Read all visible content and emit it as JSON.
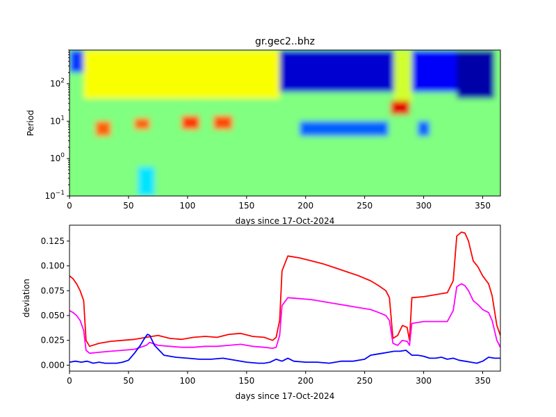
{
  "chart_data": [
    {
      "type": "heatmap",
      "title": "gr.gec2..bhz",
      "xlabel": "days since 17-Oct-2024",
      "ylabel": "Period",
      "xlim": [
        0,
        365
      ],
      "ylim": [
        0.1,
        800
      ],
      "yscale": "log",
      "colormap": "jet",
      "x_ticks": [
        0,
        50,
        100,
        150,
        200,
        250,
        300,
        350
      ],
      "x_tick_labels": [
        "0",
        "50",
        "100",
        "150",
        "200",
        "250",
        "300",
        "350"
      ],
      "y_ticks": [
        0.1,
        1,
        10,
        100
      ],
      "y_tick_labels": [
        {
          "base": "10",
          "exp": "−1"
        },
        {
          "base": "10",
          "exp": "0"
        },
        {
          "base": "10",
          "exp": "1"
        },
        {
          "base": "10",
          "exp": "2"
        }
      ],
      "description_value_scale": "0 = blue (low deviation), 1 = red (high deviation)",
      "features": [
        {
          "x_range": [
            0,
            12
          ],
          "period_range": [
            200,
            800
          ],
          "level": 0.18
        },
        {
          "x_range": [
            12,
            178
          ],
          "period_range": [
            40,
            800
          ],
          "level": 0.62
        },
        {
          "x_range": [
            178,
            275
          ],
          "period_range": [
            60,
            800
          ],
          "level": 0.08
        },
        {
          "x_range": [
            275,
            290
          ],
          "period_range": [
            30,
            800
          ],
          "level": 0.58
        },
        {
          "x_range": [
            290,
            328
          ],
          "period_range": [
            60,
            800
          ],
          "level": 0.12
        },
        {
          "x_range": [
            328,
            360
          ],
          "period_range": [
            40,
            800
          ],
          "level": 0.04
        },
        {
          "x_range": [
            22,
            35
          ],
          "period_range": [
            4,
            10
          ],
          "level": 0.78
        },
        {
          "x_range": [
            55,
            68
          ],
          "period_range": [
            6,
            12
          ],
          "level": 0.78
        },
        {
          "x_range": [
            95,
            110
          ],
          "period_range": [
            6,
            14
          ],
          "level": 0.82
        },
        {
          "x_range": [
            122,
            138
          ],
          "period_range": [
            6,
            14
          ],
          "level": 0.8
        },
        {
          "x_range": [
            272,
            288
          ],
          "period_range": [
            15,
            35
          ],
          "level": 0.9
        },
        {
          "x_range": [
            195,
            270
          ],
          "period_range": [
            4,
            10
          ],
          "level": 0.22
        },
        {
          "x_range": [
            295,
            305
          ],
          "period_range": [
            4,
            10
          ],
          "level": 0.22
        },
        {
          "x_range": [
            58,
            72
          ],
          "period_range": [
            0.1,
            0.6
          ],
          "level": 0.35
        }
      ]
    },
    {
      "type": "line",
      "xlabel": "days since 17-Oct-2024",
      "ylabel": "deviation",
      "xlim": [
        0,
        365
      ],
      "ylim": [
        -0.006,
        0.141
      ],
      "x_ticks": [
        0,
        50,
        100,
        150,
        200,
        250,
        300,
        350
      ],
      "x_tick_labels": [
        "0",
        "50",
        "100",
        "150",
        "200",
        "250",
        "300",
        "350"
      ],
      "y_ticks": [
        0.0,
        0.025,
        0.05,
        0.075,
        0.1,
        0.125
      ],
      "y_tick_labels": [
        "0.000",
        "0.025",
        "0.050",
        "0.075",
        "0.100",
        "0.125"
      ],
      "grid": false,
      "series": [
        {
          "color": "#ff0000",
          "x": [
            0,
            3,
            6,
            9,
            12,
            14,
            17,
            25,
            35,
            45,
            55,
            65,
            75,
            85,
            95,
            105,
            115,
            125,
            135,
            145,
            155,
            165,
            172,
            175,
            178,
            180,
            185,
            195,
            205,
            215,
            225,
            235,
            245,
            255,
            262,
            268,
            271,
            274,
            278,
            282,
            286,
            288,
            290,
            300,
            310,
            320,
            325,
            328,
            332,
            335,
            338,
            342,
            346,
            350,
            355,
            358,
            362,
            365
          ],
          "y": [
            0.09,
            0.087,
            0.082,
            0.075,
            0.065,
            0.025,
            0.019,
            0.022,
            0.024,
            0.025,
            0.026,
            0.028,
            0.03,
            0.027,
            0.026,
            0.028,
            0.029,
            0.028,
            0.031,
            0.032,
            0.029,
            0.028,
            0.025,
            0.028,
            0.045,
            0.095,
            0.11,
            0.108,
            0.105,
            0.102,
            0.098,
            0.094,
            0.09,
            0.085,
            0.08,
            0.075,
            0.068,
            0.027,
            0.03,
            0.04,
            0.038,
            0.025,
            0.068,
            0.069,
            0.071,
            0.073,
            0.085,
            0.13,
            0.134,
            0.133,
            0.125,
            0.105,
            0.099,
            0.09,
            0.082,
            0.07,
            0.04,
            0.03
          ]
        },
        {
          "color": "#ff00ff",
          "x": [
            0,
            3,
            6,
            9,
            12,
            14,
            17,
            25,
            35,
            45,
            55,
            65,
            68,
            75,
            85,
            95,
            105,
            115,
            125,
            135,
            145,
            155,
            165,
            172,
            175,
            178,
            180,
            185,
            195,
            205,
            215,
            225,
            235,
            245,
            255,
            262,
            268,
            271,
            274,
            278,
            282,
            286,
            288,
            290,
            300,
            310,
            320,
            325,
            328,
            332,
            335,
            338,
            342,
            346,
            350,
            355,
            358,
            362,
            365
          ],
          "y": [
            0.055,
            0.053,
            0.05,
            0.045,
            0.035,
            0.015,
            0.012,
            0.013,
            0.014,
            0.015,
            0.016,
            0.02,
            0.023,
            0.02,
            0.019,
            0.018,
            0.018,
            0.019,
            0.019,
            0.02,
            0.021,
            0.019,
            0.018,
            0.017,
            0.018,
            0.03,
            0.06,
            0.068,
            0.067,
            0.066,
            0.064,
            0.062,
            0.06,
            0.058,
            0.056,
            0.053,
            0.05,
            0.045,
            0.022,
            0.02,
            0.025,
            0.024,
            0.02,
            0.042,
            0.044,
            0.044,
            0.044,
            0.055,
            0.079,
            0.082,
            0.08,
            0.075,
            0.065,
            0.061,
            0.056,
            0.053,
            0.045,
            0.025,
            0.018
          ]
        },
        {
          "color": "#0000ff",
          "x": [
            0,
            5,
            10,
            15,
            20,
            25,
            30,
            35,
            40,
            45,
            50,
            55,
            60,
            63,
            66,
            68,
            72,
            76,
            80,
            90,
            100,
            110,
            120,
            130,
            140,
            150,
            160,
            165,
            170,
            175,
            180,
            185,
            190,
            200,
            210,
            220,
            230,
            240,
            250,
            255,
            260,
            265,
            270,
            275,
            280,
            285,
            290,
            295,
            300,
            305,
            310,
            315,
            320,
            325,
            330,
            335,
            340,
            345,
            350,
            355,
            360,
            365
          ],
          "y": [
            0.003,
            0.004,
            0.003,
            0.004,
            0.002,
            0.003,
            0.002,
            0.002,
            0.002,
            0.003,
            0.005,
            0.012,
            0.02,
            0.026,
            0.031,
            0.03,
            0.02,
            0.015,
            0.01,
            0.008,
            0.007,
            0.006,
            0.006,
            0.007,
            0.005,
            0.003,
            0.002,
            0.002,
            0.003,
            0.006,
            0.004,
            0.007,
            0.004,
            0.003,
            0.003,
            0.002,
            0.004,
            0.004,
            0.006,
            0.01,
            0.011,
            0.012,
            0.013,
            0.014,
            0.014,
            0.015,
            0.01,
            0.01,
            0.009,
            0.007,
            0.007,
            0.008,
            0.006,
            0.007,
            0.005,
            0.004,
            0.003,
            0.002,
            0.004,
            0.008,
            0.007,
            0.007
          ]
        }
      ]
    }
  ]
}
